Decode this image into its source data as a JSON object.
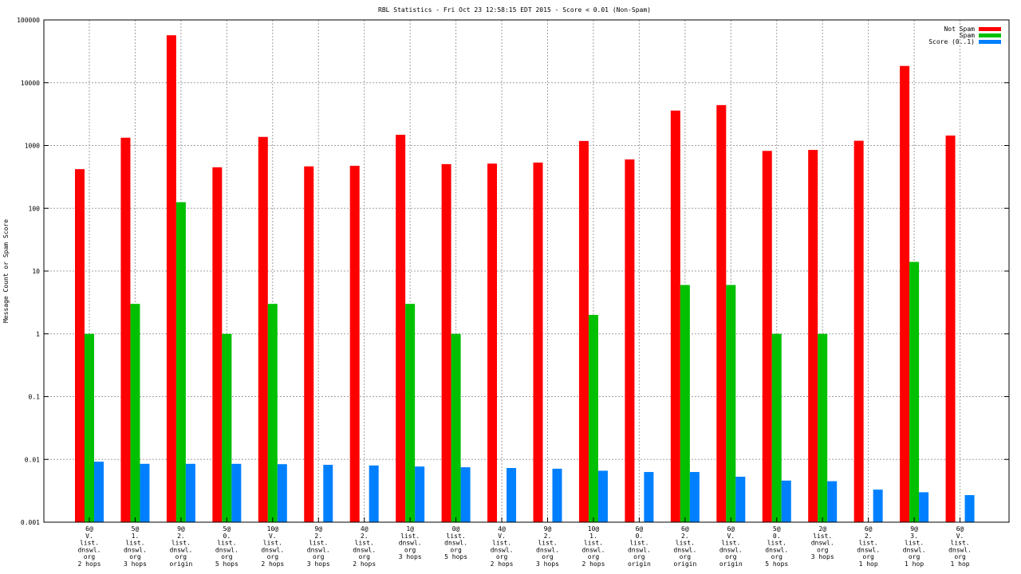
{
  "chart_data": {
    "type": "bar",
    "title": "RBL Statistics - Fri Oct 23 12:58:15 EDT 2015 - Score < 0.01 (Non-Spam)",
    "xlabel": "",
    "ylabel": "Message Count or Spam Score",
    "yscale": "log",
    "ylim": [
      0.001,
      100000
    ],
    "yticks": [
      "0.001",
      "0.01",
      "0.1",
      "1",
      "10",
      "100",
      "1000",
      "10000",
      "100000"
    ],
    "grid": true,
    "legend_position": "top-right",
    "categories": [
      [
        "6@",
        "V.",
        "list.",
        "dnswl.",
        "org",
        "2 hops"
      ],
      [
        "5@",
        "1.",
        "list.",
        "dnswl.",
        "org",
        "3 hops"
      ],
      [
        "9@",
        "2.",
        "list.",
        "dnswl.",
        "org",
        "origin"
      ],
      [
        "5@",
        "0.",
        "list.",
        "dnswl.",
        "org",
        "5 hops"
      ],
      [
        "10@",
        "V.",
        "list.",
        "dnswl.",
        "org",
        "2 hops"
      ],
      [
        "9@",
        "2.",
        "list.",
        "dnswl.",
        "org",
        "3 hops"
      ],
      [
        "4@",
        "2.",
        "list.",
        "dnswl.",
        "org",
        "2 hops"
      ],
      [
        "1@",
        "list.",
        "dnswl.",
        "org",
        "3 hops"
      ],
      [
        "0@",
        "list.",
        "dnswl.",
        "org",
        "5 hops"
      ],
      [
        "4@",
        "V.",
        "list.",
        "dnswl.",
        "org",
        "2 hops"
      ],
      [
        "9@",
        "2.",
        "list.",
        "dnswl.",
        "org",
        "3 hops"
      ],
      [
        "10@",
        "1.",
        "list.",
        "dnswl.",
        "org",
        "2 hops"
      ],
      [
        "6@",
        "0.",
        "list.",
        "dnswl.",
        "org",
        "origin"
      ],
      [
        "6@",
        "2.",
        "list.",
        "dnswl.",
        "org",
        "origin"
      ],
      [
        "6@",
        "V.",
        "list.",
        "dnswl.",
        "org",
        "origin"
      ],
      [
        "5@",
        "0.",
        "list.",
        "dnswl.",
        "org",
        "5 hops"
      ],
      [
        "2@",
        "list.",
        "dnswl.",
        "org",
        "3 hops"
      ],
      [
        "6@",
        "2.",
        "list.",
        "dnswl.",
        "org",
        "1 hop"
      ],
      [
        "9@",
        "3.",
        "list.",
        "dnswl.",
        "org",
        "1 hop"
      ],
      [
        "6@",
        "V.",
        "list.",
        "dnswl.",
        "org",
        "1 hop"
      ]
    ],
    "series": [
      {
        "name": "Not Spam",
        "color": "#ff0000",
        "values": [
          420,
          1330,
          57000,
          450,
          1370,
          465,
          475,
          1480,
          505,
          515,
          535,
          1180,
          600,
          3600,
          4400,
          820,
          850,
          1190,
          18500,
          1440
        ]
      },
      {
        "name": "Spam",
        "color": "#00c000",
        "values": [
          1,
          3,
          125,
          1,
          3,
          null,
          null,
          3,
          1,
          null,
          null,
          2,
          null,
          6,
          6,
          1,
          1,
          null,
          14,
          null
        ]
      },
      {
        "name": "Score (0..1)",
        "color": "#0080ff",
        "values": [
          0.0092,
          0.0085,
          0.0085,
          0.0085,
          0.0084,
          0.0082,
          0.008,
          0.0077,
          0.0075,
          0.0073,
          0.0071,
          0.0066,
          0.0063,
          0.0063,
          0.0053,
          0.0046,
          0.0045,
          0.0033,
          0.003,
          0.0027
        ]
      }
    ]
  }
}
